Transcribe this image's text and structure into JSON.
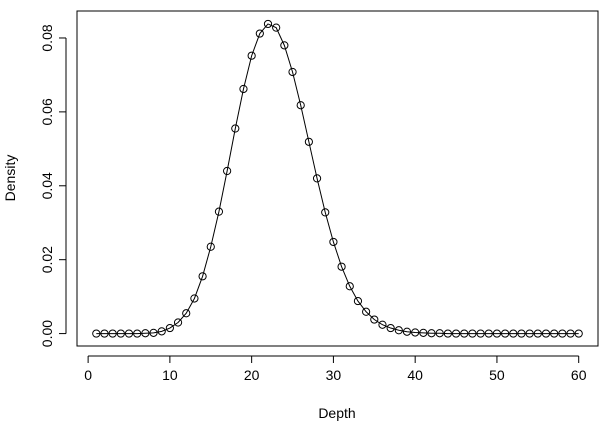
{
  "chart_data": {
    "type": "line",
    "title": "",
    "xlabel": "Depth",
    "ylabel": "Density",
    "xlim": [
      -1.36,
      62.36
    ],
    "ylim": [
      -0.00336,
      0.0873
    ],
    "xticks": [
      0,
      10,
      20,
      30,
      40,
      50,
      60
    ],
    "xtick_labels": [
      "0",
      "10",
      "20",
      "30",
      "40",
      "50",
      "60"
    ],
    "yticks": [
      0.0,
      0.02,
      0.04,
      0.06,
      0.08
    ],
    "ytick_labels": [
      "0.00",
      "0.02",
      "0.04",
      "0.06",
      "0.08"
    ],
    "grid": false,
    "legend": "none",
    "series": [
      {
        "marker": "open-circle",
        "line": true,
        "color": "#000000",
        "x": [
          1,
          2,
          3,
          4,
          5,
          6,
          7,
          8,
          9,
          10,
          11,
          12,
          13,
          14,
          15,
          16,
          17,
          18,
          19,
          20,
          21,
          22,
          23,
          24,
          25,
          26,
          27,
          28,
          29,
          30,
          31,
          32,
          33,
          34,
          35,
          36,
          37,
          38,
          39,
          40,
          41,
          42,
          43,
          44,
          45,
          46,
          47,
          48,
          49,
          50,
          51,
          52,
          53,
          54,
          55,
          56,
          57,
          58,
          59,
          60
        ],
        "y": [
          0.0,
          0.0,
          0.0,
          0.0,
          0.0,
          0.0,
          0.0001,
          0.0002,
          0.0006,
          0.0015,
          0.003,
          0.0055,
          0.0095,
          0.0155,
          0.0235,
          0.033,
          0.044,
          0.0555,
          0.0662,
          0.0752,
          0.0812,
          0.0838,
          0.0828,
          0.078,
          0.0708,
          0.0618,
          0.0519,
          0.042,
          0.0328,
          0.0248,
          0.0181,
          0.0128,
          0.0088,
          0.0059,
          0.0038,
          0.0024,
          0.0015,
          0.0009,
          0.0005,
          0.0003,
          0.0002,
          0.0001,
          0.0001,
          0.0,
          0.0,
          0.0,
          0.0,
          0.0,
          0.0,
          0.0,
          0.0,
          0.0,
          0.0,
          0.0,
          0.0,
          0.0,
          0.0,
          0.0,
          0.0,
          0.0
        ]
      }
    ]
  }
}
